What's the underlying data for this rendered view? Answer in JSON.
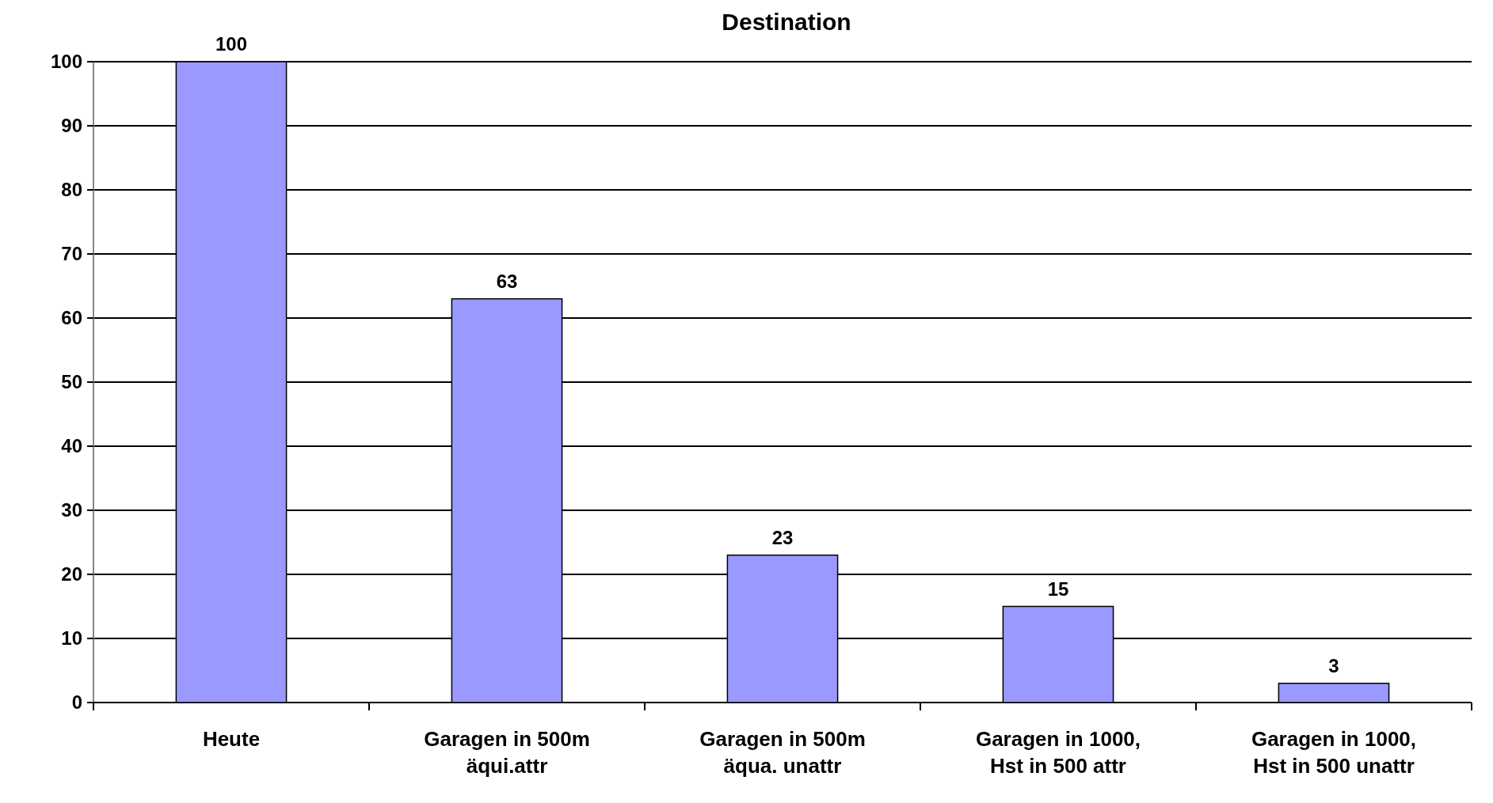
{
  "chart_data": {
    "type": "bar",
    "title": "Destination",
    "categories": [
      "Heute",
      "Garagen in 500m\näqui.attr",
      "Garagen in 500m\näqua. unattr",
      "Garagen in 1000,\nHst in 500 attr",
      "Garagen in 1000,\nHst in 500 unattr"
    ],
    "values": [
      100,
      63,
      23,
      15,
      3
    ],
    "color": "#9999ff",
    "data_labels": true,
    "ylim": [
      0,
      100
    ],
    "yticks": [
      0,
      10,
      20,
      30,
      40,
      50,
      60,
      70,
      80,
      90,
      100
    ],
    "grid": "y"
  }
}
